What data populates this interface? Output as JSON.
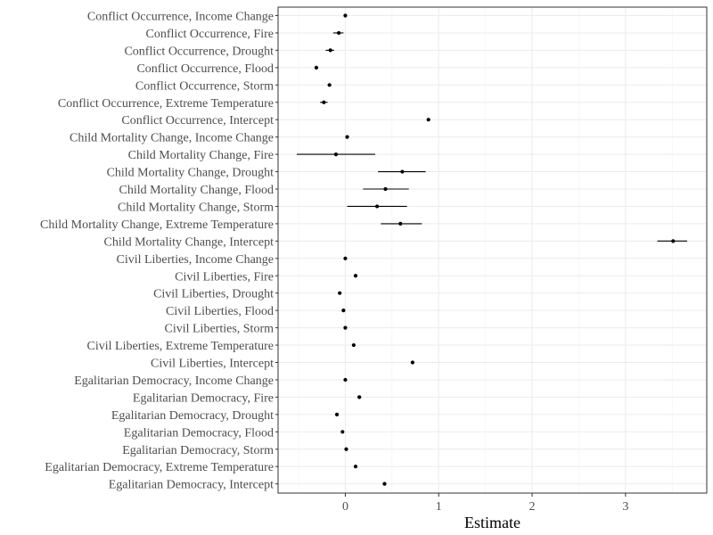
{
  "chart_data": {
    "type": "scatter",
    "subtype": "dot-and-whisker",
    "title": "",
    "xlabel": "Estimate",
    "ylabel": "",
    "xlim": [
      -0.72,
      3.87
    ],
    "x_ticks": [
      0,
      1,
      2,
      3
    ],
    "grid": true,
    "colors": {
      "point": "#000000",
      "grid": "#ebebeb",
      "border": "#333333"
    },
    "points": [
      {
        "label": "Conflict Occurrence, Income Change",
        "estimate": 0.0,
        "low": 0.0,
        "high": 0.0
      },
      {
        "label": "Conflict Occurrence, Fire",
        "estimate": -0.07,
        "low": -0.13,
        "high": -0.02
      },
      {
        "label": "Conflict Occurrence, Drought",
        "estimate": -0.16,
        "low": -0.21,
        "high": -0.12
      },
      {
        "label": "Conflict Occurrence, Flood",
        "estimate": -0.31,
        "low": -0.33,
        "high": -0.29
      },
      {
        "label": "Conflict Occurrence, Storm",
        "estimate": -0.17,
        "low": -0.19,
        "high": -0.15
      },
      {
        "label": "Conflict Occurrence, Extreme Temperature",
        "estimate": -0.23,
        "low": -0.27,
        "high": -0.19
      },
      {
        "label": "Conflict Occurrence, Intercept",
        "estimate": 0.89,
        "low": 0.89,
        "high": 0.89
      },
      {
        "label": "Child Mortality Change, Income Change",
        "estimate": 0.02,
        "low": 0.02,
        "high": 0.02
      },
      {
        "label": "Child Mortality Change, Fire",
        "estimate": -0.1,
        "low": -0.52,
        "high": 0.32
      },
      {
        "label": "Child Mortality Change, Drought",
        "estimate": 0.61,
        "low": 0.35,
        "high": 0.86
      },
      {
        "label": "Child Mortality Change, Flood",
        "estimate": 0.43,
        "low": 0.19,
        "high": 0.68
      },
      {
        "label": "Child Mortality Change, Storm",
        "estimate": 0.34,
        "low": 0.02,
        "high": 0.66
      },
      {
        "label": "Child Mortality Change, Extreme Temperature",
        "estimate": 0.59,
        "low": 0.38,
        "high": 0.82
      },
      {
        "label": "Child Mortality Change, Intercept",
        "estimate": 3.51,
        "low": 3.34,
        "high": 3.66
      },
      {
        "label": "Civil Liberties, Income Change",
        "estimate": 0.0,
        "low": 0.0,
        "high": 0.0
      },
      {
        "label": "Civil Liberties, Fire",
        "estimate": 0.11,
        "low": 0.1,
        "high": 0.12
      },
      {
        "label": "Civil Liberties, Drought",
        "estimate": -0.06,
        "low": -0.07,
        "high": -0.05
      },
      {
        "label": "Civil Liberties, Flood",
        "estimate": -0.02,
        "low": -0.03,
        "high": -0.01
      },
      {
        "label": "Civil Liberties, Storm",
        "estimate": 0.0,
        "low": 0.0,
        "high": 0.0
      },
      {
        "label": "Civil Liberties, Extreme Temperature",
        "estimate": 0.09,
        "low": 0.09,
        "high": 0.09
      },
      {
        "label": "Civil Liberties, Intercept",
        "estimate": 0.72,
        "low": 0.72,
        "high": 0.72
      },
      {
        "label": "Egalitarian Democracy, Income Change",
        "estimate": 0.0,
        "low": 0.0,
        "high": 0.0
      },
      {
        "label": "Egalitarian Democracy, Fire",
        "estimate": 0.15,
        "low": 0.13,
        "high": 0.17
      },
      {
        "label": "Egalitarian Democracy, Drought",
        "estimate": -0.09,
        "low": -0.1,
        "high": -0.08
      },
      {
        "label": "Egalitarian Democracy, Flood",
        "estimate": -0.03,
        "low": -0.04,
        "high": -0.02
      },
      {
        "label": "Egalitarian Democracy, Storm",
        "estimate": 0.01,
        "low": 0.01,
        "high": 0.01
      },
      {
        "label": "Egalitarian Democracy, Extreme Temperature",
        "estimate": 0.11,
        "low": 0.1,
        "high": 0.12
      },
      {
        "label": "Egalitarian Democracy, Intercept",
        "estimate": 0.42,
        "low": 0.42,
        "high": 0.42
      }
    ]
  }
}
